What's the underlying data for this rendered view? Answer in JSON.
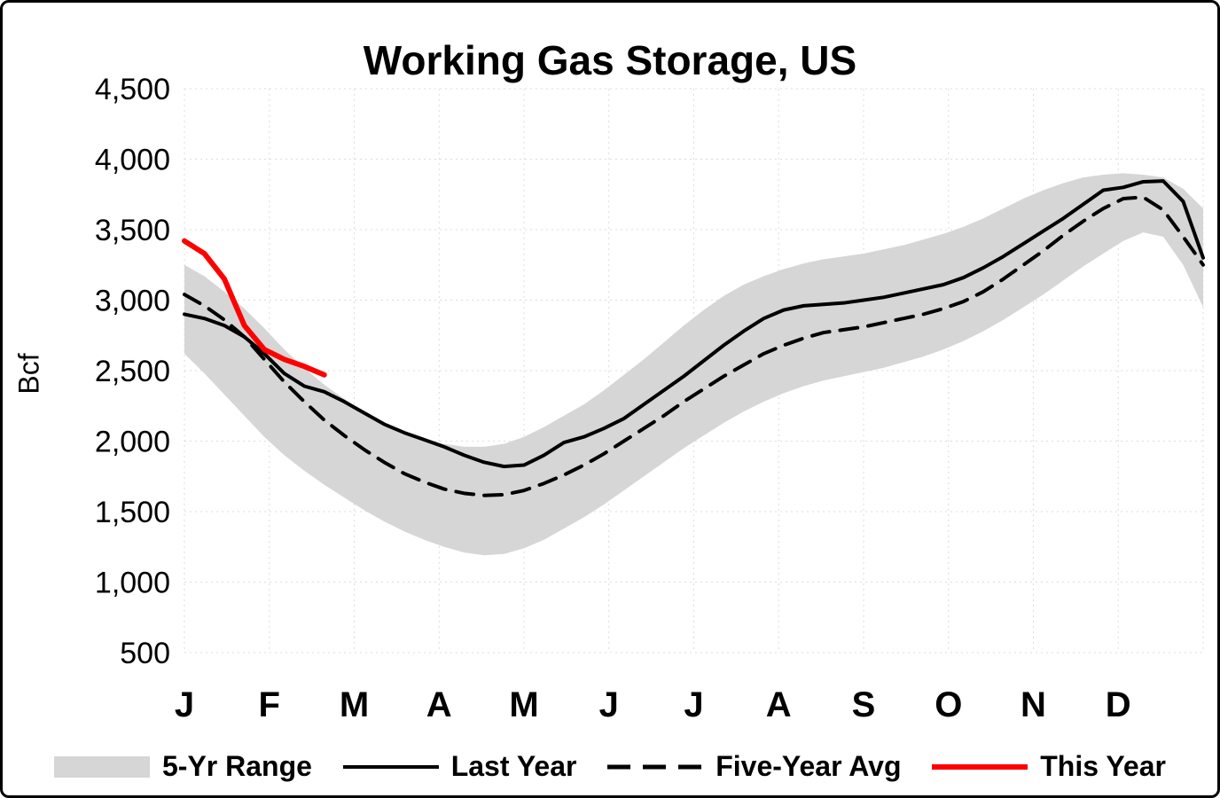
{
  "chart_data": {
    "type": "line",
    "title": "Working Gas Storage, US",
    "ylabel": "Bcf",
    "ylim": [
      500,
      4500
    ],
    "ytick_step": 500,
    "x_unit": "weeks",
    "grid": true,
    "legend_position": "bottom",
    "month_labels": [
      "J",
      "F",
      "M",
      "A",
      "M",
      "J",
      "J",
      "A",
      "S",
      "O",
      "N",
      "D"
    ],
    "colors": {
      "band": "#d6d6d6",
      "last_year": "#000000",
      "five_year_avg": "#000000",
      "this_year": "#fe0000",
      "grid": "#dcdcdc",
      "text": "#000000"
    },
    "legend": [
      {
        "label": "5-Yr Range"
      },
      {
        "label": "Last Year"
      },
      {
        "label": "Five-Year Avg"
      },
      {
        "label": "This Year"
      }
    ],
    "band": {
      "name": "5-Yr Range",
      "upper": [
        3250,
        3170,
        3060,
        2940,
        2800,
        2650,
        2520,
        2400,
        2300,
        2200,
        2120,
        2060,
        2010,
        1980,
        1960,
        1960,
        1980,
        2030,
        2100,
        2180,
        2260,
        2360,
        2470,
        2580,
        2700,
        2820,
        2930,
        3030,
        3110,
        3170,
        3220,
        3260,
        3290,
        3310,
        3330,
        3360,
        3390,
        3430,
        3470,
        3520,
        3580,
        3650,
        3720,
        3780,
        3830,
        3870,
        3890,
        3900,
        3890,
        3870,
        3790,
        3650
      ],
      "lower": [
        2620,
        2480,
        2330,
        2180,
        2030,
        1900,
        1790,
        1690,
        1600,
        1510,
        1430,
        1360,
        1300,
        1250,
        1210,
        1190,
        1200,
        1240,
        1300,
        1380,
        1460,
        1550,
        1650,
        1750,
        1850,
        1950,
        2040,
        2130,
        2210,
        2280,
        2340,
        2390,
        2430,
        2460,
        2490,
        2520,
        2560,
        2600,
        2650,
        2710,
        2780,
        2860,
        2950,
        3040,
        3140,
        3240,
        3330,
        3420,
        3480,
        3450,
        3250,
        2950
      ]
    },
    "series": [
      {
        "name": "Last Year",
        "color": "#000000",
        "width": 4,
        "dash": "none",
        "values": [
          2900,
          2870,
          2820,
          2740,
          2620,
          2480,
          2390,
          2350,
          2280,
          2200,
          2120,
          2060,
          2010,
          1960,
          1900,
          1850,
          1820,
          1830,
          1900,
          1990,
          2030,
          2090,
          2160,
          2260,
          2360,
          2460,
          2570,
          2680,
          2780,
          2870,
          2930,
          2960,
          2970,
          2980,
          3000,
          3020,
          3050,
          3080,
          3110,
          3160,
          3230,
          3310,
          3400,
          3490,
          3580,
          3680,
          3780,
          3800,
          3840,
          3845,
          3700,
          3300
        ]
      },
      {
        "name": "Five-Year Avg",
        "color": "#000000",
        "width": 4,
        "dash": "20 12",
        "values": [
          3040,
          2960,
          2860,
          2740,
          2580,
          2420,
          2280,
          2150,
          2040,
          1940,
          1850,
          1770,
          1710,
          1660,
          1630,
          1615,
          1620,
          1650,
          1700,
          1760,
          1830,
          1910,
          2000,
          2090,
          2180,
          2280,
          2370,
          2460,
          2540,
          2620,
          2680,
          2730,
          2770,
          2790,
          2810,
          2840,
          2870,
          2900,
          2940,
          2990,
          3060,
          3150,
          3250,
          3350,
          3460,
          3560,
          3650,
          3720,
          3730,
          3640,
          3450,
          3250
        ]
      },
      {
        "name": "This Year",
        "color": "#fe0000",
        "width": 6,
        "dash": "none",
        "values": [
          3420,
          3330,
          3150,
          2820,
          2650,
          2580,
          2530,
          2470
        ]
      }
    ]
  }
}
